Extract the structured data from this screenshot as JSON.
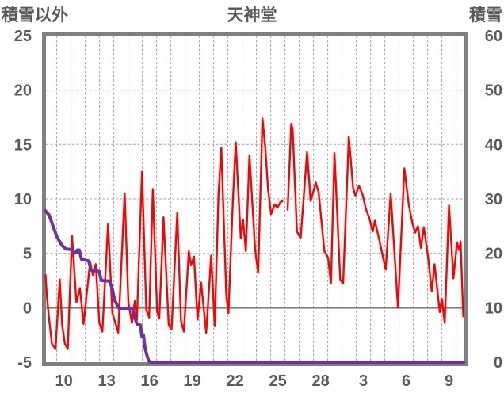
{
  "header": {
    "left_axis_title": "積雪以外",
    "chart_title": "天神堂",
    "right_axis_title": "積雪"
  },
  "style": {
    "red_series_color": "#ff0000",
    "purple_series_color": "#7030a0",
    "frame_color": "#808080",
    "grid_color": "#a3a3a3",
    "zero_line_color": "#808080",
    "text_color": "#595959",
    "background": "#ffffff"
  },
  "chart_data": {
    "type": "line",
    "title": "天神堂",
    "x_axis": {
      "tick_labels": [
        "10",
        "13",
        "16",
        "19",
        "22",
        "25",
        "28",
        "3",
        "6",
        "9"
      ],
      "tick_positions_days": [
        10.5,
        13.5,
        16.5,
        19.5,
        22.5,
        25.5,
        28.5,
        31.5,
        34.5,
        37.5
      ],
      "range_days": [
        9.24,
        38.52
      ],
      "note": "daily vertical dashed gridlines; days run Feb 9 through Mar 10 (month rollover after 28)",
      "gridline_days_start": 10,
      "gridline_count": 29
    },
    "left_axis": {
      "title": "積雪以外",
      "ticks": [
        25,
        20,
        15,
        10,
        5,
        0,
        -5
      ],
      "range": [
        -5,
        25
      ],
      "zero_line": 0
    },
    "right_axis": {
      "title": "積雪",
      "ticks": [
        60,
        50,
        40,
        30,
        20,
        10,
        0
      ],
      "range": [
        0,
        60
      ]
    },
    "grid": {
      "horizontal_dashed_at_left_values": [
        20,
        15,
        10,
        5
      ],
      "vertical": "daily"
    },
    "legend": "none",
    "series": [
      {
        "name": "積雪以外",
        "axis": "left",
        "color": "#ff0000",
        "line_width": 2.4,
        "note": "null entry = visible gap in line near day 25",
        "points": [
          [
            9.21,
            3.0
          ],
          [
            9.3,
            1.2
          ],
          [
            9.46,
            -1.0
          ],
          [
            9.66,
            -3.3
          ],
          [
            9.91,
            -3.8
          ],
          [
            10.21,
            2.6
          ],
          [
            10.37,
            -1.5
          ],
          [
            10.57,
            -3.3
          ],
          [
            10.77,
            -3.8
          ],
          [
            11.07,
            6.6
          ],
          [
            11.38,
            0.5
          ],
          [
            11.63,
            1.8
          ],
          [
            11.88,
            -1.5
          ],
          [
            12.34,
            4.2
          ],
          [
            12.54,
            3.0
          ],
          [
            12.74,
            4.0
          ],
          [
            12.99,
            -1.4
          ],
          [
            13.2,
            -2.2
          ],
          [
            13.6,
            7.7
          ],
          [
            13.9,
            -0.5
          ],
          [
            14.16,
            -1.6
          ],
          [
            14.31,
            -2.3
          ],
          [
            14.76,
            10.5
          ],
          [
            15.02,
            0.5
          ],
          [
            15.27,
            -1.4
          ],
          [
            15.47,
            0.6
          ],
          [
            15.62,
            -1.1
          ],
          [
            15.98,
            12.5
          ],
          [
            16.28,
            -0.2
          ],
          [
            16.48,
            -0.9
          ],
          [
            16.74,
            10.9
          ],
          [
            17.04,
            -0.4
          ],
          [
            17.19,
            -1.0
          ],
          [
            17.49,
            8.3
          ],
          [
            17.85,
            -1.6
          ],
          [
            18.05,
            -2.0
          ],
          [
            18.45,
            8.7
          ],
          [
            18.71,
            -1.2
          ],
          [
            18.91,
            -2.2
          ],
          [
            19.26,
            5.2
          ],
          [
            19.41,
            3.9
          ],
          [
            19.62,
            4.7
          ],
          [
            19.87,
            -1.1
          ],
          [
            20.12,
            2.3
          ],
          [
            20.48,
            -2.3
          ],
          [
            20.83,
            4.8
          ],
          [
            21.08,
            -1.7
          ],
          [
            21.34,
            10.4
          ],
          [
            21.54,
            14.7
          ],
          [
            21.89,
            1.1
          ],
          [
            22.04,
            -0.5
          ],
          [
            22.35,
            9.9
          ],
          [
            22.55,
            15.2
          ],
          [
            22.9,
            6.4
          ],
          [
            23.06,
            8.1
          ],
          [
            23.26,
            5.2
          ],
          [
            23.51,
            14.0
          ],
          [
            23.91,
            5.3
          ],
          [
            24.12,
            3.2
          ],
          [
            24.42,
            17.4
          ],
          [
            24.62,
            14.7
          ],
          [
            24.82,
            10.8
          ],
          [
            25.03,
            8.6
          ],
          [
            25.28,
            9.5
          ],
          [
            25.48,
            9.2
          ],
          [
            25.68,
            9.7
          ],
          [
            25.83,
            9.8
          ],
          null,
          [
            26.19,
            9.0
          ],
          [
            26.44,
            16.9
          ],
          [
            26.54,
            16.4
          ],
          [
            26.84,
            7.0
          ],
          [
            27.1,
            6.4
          ],
          [
            27.55,
            14.3
          ],
          [
            27.8,
            9.8
          ],
          [
            28.16,
            11.5
          ],
          [
            28.36,
            10.6
          ],
          [
            28.76,
            5.2
          ],
          [
            29.02,
            4.6
          ],
          [
            29.22,
            2.2
          ],
          [
            29.47,
            14.2
          ],
          [
            29.87,
            2.6
          ],
          [
            30.08,
            2.2
          ],
          [
            30.48,
            15.7
          ],
          [
            30.78,
            11.0
          ],
          [
            30.94,
            10.3
          ],
          [
            31.19,
            11.2
          ],
          [
            31.44,
            10.4
          ],
          [
            31.69,
            9.0
          ],
          [
            31.9,
            8.3
          ],
          [
            32.15,
            7.0
          ],
          [
            32.3,
            8.0
          ],
          [
            32.6,
            6.3
          ],
          [
            33.06,
            3.5
          ],
          [
            33.41,
            10.5
          ],
          [
            33.92,
            0.0
          ],
          [
            34.37,
            12.8
          ],
          [
            34.68,
            9.5
          ],
          [
            34.93,
            7.8
          ],
          [
            35.13,
            6.9
          ],
          [
            35.33,
            7.5
          ],
          [
            35.53,
            5.5
          ],
          [
            35.74,
            7.4
          ],
          [
            36.04,
            4.6
          ],
          [
            36.29,
            1.5
          ],
          [
            36.49,
            4.0
          ],
          [
            36.85,
            -0.4
          ],
          [
            37.0,
            0.8
          ],
          [
            37.2,
            -1.4
          ],
          [
            37.5,
            9.4
          ],
          [
            37.81,
            2.7
          ],
          [
            38.06,
            6.0
          ],
          [
            38.21,
            5.3
          ],
          [
            38.31,
            6.1
          ],
          [
            38.5,
            -0.8
          ]
        ]
      },
      {
        "name": "積雪",
        "axis": "right",
        "color": "#7030a0",
        "line_width": 4,
        "points": [
          [
            9.21,
            27.8
          ],
          [
            9.47,
            27.0
          ],
          [
            9.74,
            25.0
          ],
          [
            10.02,
            23.0
          ],
          [
            10.36,
            21.5
          ],
          [
            10.63,
            20.8
          ],
          [
            11.1,
            20.7
          ],
          [
            11.2,
            20.0
          ],
          [
            11.33,
            20.1
          ],
          [
            11.45,
            20.6
          ],
          [
            11.58,
            20.6
          ],
          [
            11.74,
            18.9
          ],
          [
            12.24,
            18.6
          ],
          [
            12.41,
            16.9
          ],
          [
            12.97,
            16.7
          ],
          [
            13.13,
            15.0
          ],
          [
            13.69,
            14.9
          ],
          [
            13.86,
            13.8
          ],
          [
            14.08,
            11.3
          ],
          [
            14.36,
            9.9
          ],
          [
            15.3,
            9.9
          ],
          [
            15.47,
            8.2
          ],
          [
            15.63,
            7.0
          ],
          [
            15.86,
            6.8
          ],
          [
            15.97,
            4.7
          ],
          [
            16.08,
            5.0
          ],
          [
            16.19,
            2.6
          ],
          [
            16.3,
            1.5
          ],
          [
            16.41,
            0.5
          ],
          [
            16.52,
            0.0
          ],
          [
            38.52,
            0.0
          ]
        ]
      }
    ]
  }
}
